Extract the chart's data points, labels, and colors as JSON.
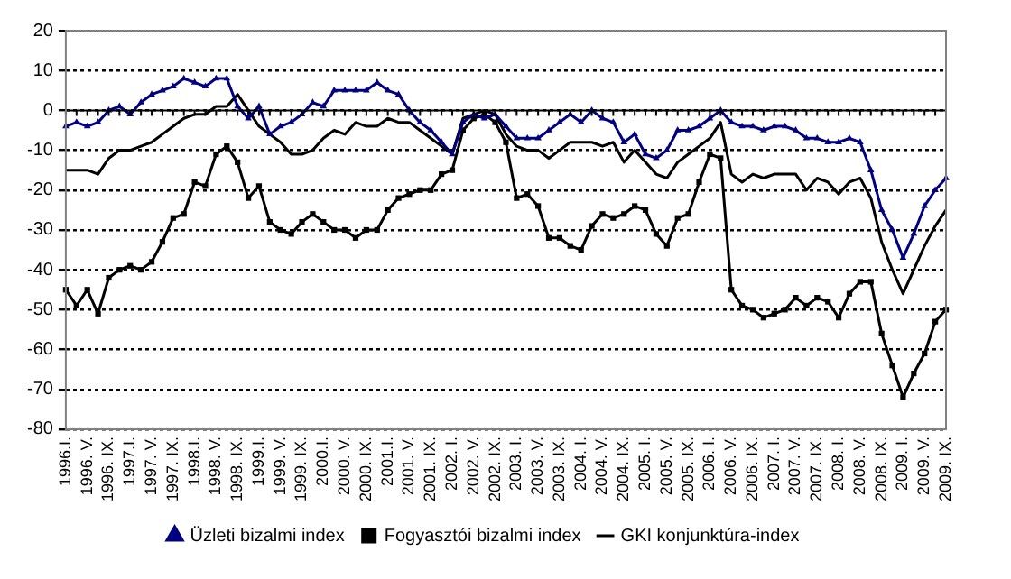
{
  "chart_data": {
    "type": "line",
    "categories": [
      "1996.I.",
      null,
      "1996. V.",
      null,
      "1996. IX.",
      null,
      "1997.I.",
      null,
      "1997. V.",
      null,
      "1997. IX.",
      null,
      "1998.I.",
      null,
      "1998. V.",
      null,
      "1998. IX.",
      null,
      "1999.I.",
      null,
      "1999. V.",
      null,
      "1999. IX.",
      null,
      "2000.I.",
      null,
      "2000. V.",
      null,
      "2000. IX.",
      null,
      "2001.I.",
      null,
      "2001. V.",
      null,
      "2001. IX.",
      null,
      "2002. I.",
      null,
      "2002. V.",
      null,
      "2002. IX.",
      null,
      "2003. I.",
      null,
      "2003. V.",
      null,
      "2003. IX.",
      null,
      "2004. I.",
      null,
      "2004. V.",
      null,
      "2004. IX.",
      null,
      "2005. I.",
      null,
      "2005. V.",
      null,
      "2005. IX.",
      null,
      "2006. I.",
      null,
      "2006. V.",
      null,
      "2006. IX.",
      null,
      "2007. I.",
      null,
      "2007. V.",
      null,
      "2007. IX.",
      null,
      "2008. I.",
      null,
      "2008. V.",
      null,
      "2008. IX.",
      null,
      "2009. I.",
      null,
      "2009. V.",
      null,
      "2009. IX."
    ],
    "series": [
      {
        "name": "Üzleti bizalmi index",
        "color": "#000080",
        "marker": "triangle",
        "values": [
          -4,
          -3,
          -4,
          -3,
          0,
          1,
          -1,
          2,
          4,
          5,
          6,
          8,
          7,
          6,
          8,
          8,
          1,
          -2,
          1,
          -6,
          -4,
          -3,
          -1,
          2,
          1,
          5,
          5,
          5,
          5,
          7,
          5,
          4,
          0,
          -3,
          -5,
          -8,
          -11,
          -3,
          -1,
          -2,
          -1,
          -4,
          -7,
          -7,
          -7,
          -5,
          -3,
          -1,
          -3,
          0,
          -2,
          -3,
          -8,
          -6,
          -11,
          -12,
          -10,
          -5,
          -5,
          -4,
          -2,
          0,
          -3,
          -4,
          -4,
          -5,
          -4,
          -4,
          -5,
          -7,
          -7,
          -8,
          -8,
          -7,
          -8,
          -15,
          -25,
          -30,
          -37,
          -31,
          -24,
          -20,
          -17
        ]
      },
      {
        "name": "Fogyasztói bizalmi index",
        "color": "#000000",
        "marker": "square",
        "values": [
          -45,
          -49,
          -45,
          -51,
          -42,
          -40,
          -39,
          -40,
          -38,
          -33,
          -27,
          -26,
          -18,
          -19,
          -11,
          -9,
          -13,
          -22,
          -19,
          -28,
          -30,
          -31,
          -28,
          -26,
          -28,
          -30,
          -30,
          -32,
          -30,
          -30,
          -25,
          -22,
          -21,
          -20,
          -20,
          -16,
          -15,
          -5,
          -2,
          -1,
          -3,
          -8,
          -22,
          -21,
          -24,
          -32,
          -32,
          -34,
          -35,
          -29,
          -26,
          -27,
          -26,
          -24,
          -25,
          -31,
          -34,
          -27,
          -26,
          -18,
          -11,
          -12,
          -45,
          -49,
          -50,
          -52,
          -51,
          -50,
          -47,
          -49,
          -47,
          -48,
          -52,
          -46,
          -43,
          -43,
          -56,
          -64,
          -72,
          -66,
          -61,
          -53,
          -50
        ]
      },
      {
        "name": "GKI konjunktúra-index",
        "color": "#000000",
        "marker": "none",
        "values": [
          -15,
          -15,
          -15,
          -16,
          -12,
          -10,
          -10,
          -9,
          -8,
          -6,
          -4,
          -2,
          -1,
          -1,
          1,
          1,
          4,
          0,
          -4,
          -6,
          -8,
          -11,
          -11,
          -10,
          -7,
          -5,
          -6,
          -3,
          -4,
          -4,
          -2,
          -3,
          -3,
          -5,
          -7,
          -9,
          -11,
          -2,
          -1,
          0,
          -1,
          -6,
          -9,
          -10,
          -10,
          -12,
          -10,
          -8,
          -8,
          -8,
          -9,
          -8,
          -13,
          -10,
          -13,
          -16,
          -17,
          -13,
          -11,
          -9,
          -7,
          -3,
          -16,
          -18,
          -16,
          -17,
          -16,
          -16,
          -16,
          -20,
          -17,
          -18,
          -21,
          -18,
          -17,
          -22,
          -33,
          -40,
          -46,
          -40,
          -34,
          -29,
          -25
        ]
      }
    ],
    "ylim": [
      -80,
      20
    ],
    "yticks": [
      -80,
      -70,
      -60,
      -50,
      -40,
      -30,
      -20,
      -10,
      0,
      10,
      20
    ],
    "grid": "y",
    "legend": "bottom",
    "ref_lines": [
      {
        "axis": "y",
        "value": 0
      }
    ]
  }
}
